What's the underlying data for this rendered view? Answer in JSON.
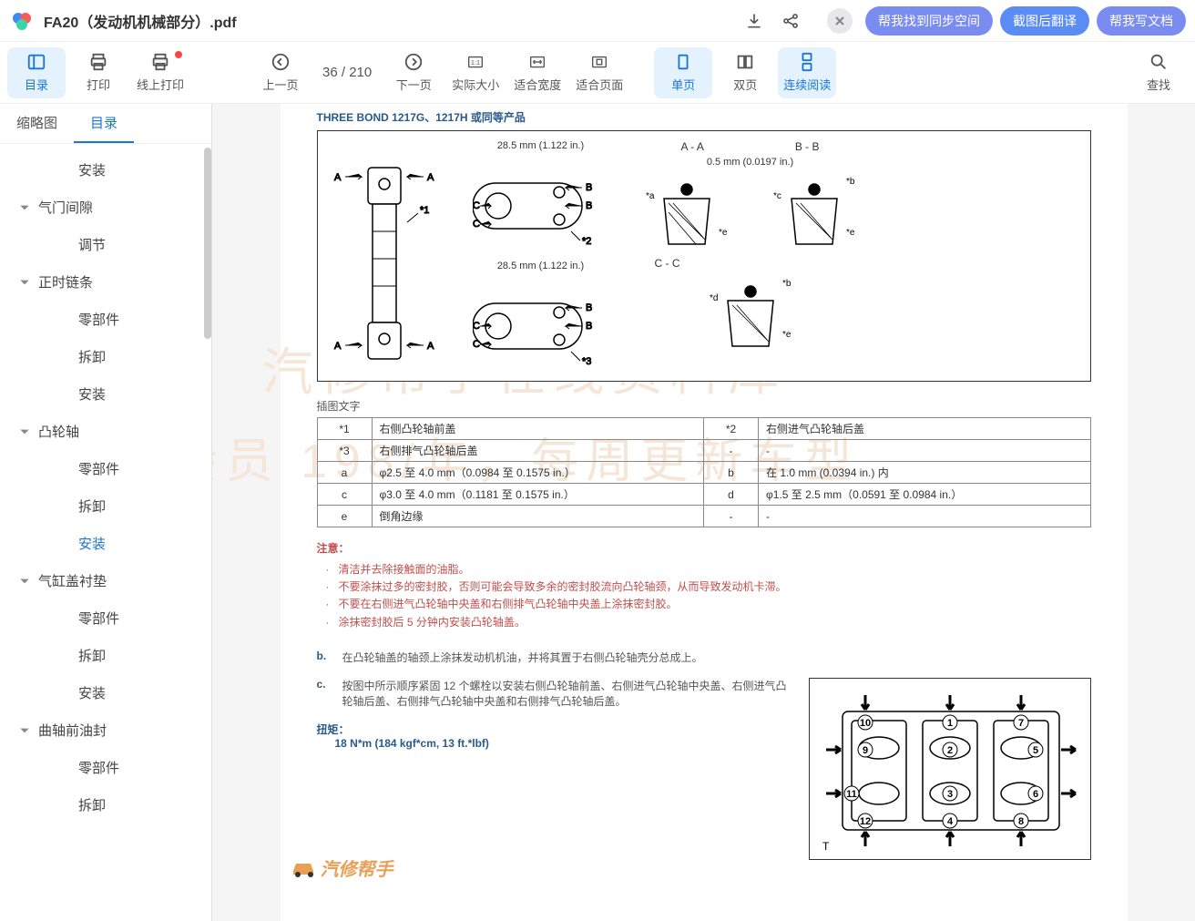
{
  "header": {
    "file_title": "FA20（发动机机械部分）.pdf",
    "pills": {
      "sync": "帮我找到同步空间",
      "translate": "截图后翻译",
      "write": "帮我写文档"
    }
  },
  "toolbar": {
    "outline": "目录",
    "print": "打印",
    "online_print": "线上打印",
    "prev": "上一页",
    "page_current": "36",
    "page_sep": "/ 210",
    "next": "下一页",
    "actual_size": "实际大小",
    "fit_width": "适合宽度",
    "fit_page": "适合页面",
    "single": "单页",
    "double": "双页",
    "continuous": "连续阅读",
    "search": "查找"
  },
  "sidebar": {
    "tab_thumbnails": "缩略图",
    "tab_outline": "目录",
    "items": [
      {
        "level": 2,
        "label": "安装"
      },
      {
        "level": 1,
        "label": "气门间隙"
      },
      {
        "level": 2,
        "label": "调节"
      },
      {
        "level": 1,
        "label": "正时链条"
      },
      {
        "level": 2,
        "label": "零部件"
      },
      {
        "level": 2,
        "label": "拆卸"
      },
      {
        "level": 2,
        "label": "安装"
      },
      {
        "level": 1,
        "label": "凸轮轴"
      },
      {
        "level": 2,
        "label": "零部件"
      },
      {
        "level": 2,
        "label": "拆卸"
      },
      {
        "level": 2,
        "label": "安装",
        "active": true
      },
      {
        "level": 1,
        "label": "气缸盖衬垫"
      },
      {
        "level": 2,
        "label": "零部件"
      },
      {
        "level": 2,
        "label": "拆卸"
      },
      {
        "level": 2,
        "label": "安装"
      },
      {
        "level": 1,
        "label": "曲轴前油封"
      },
      {
        "level": 2,
        "label": "零部件"
      },
      {
        "level": 2,
        "label": "拆卸"
      }
    ]
  },
  "doc": {
    "watermark1": "汽修帮手在线资料库",
    "watermark2": "会员 198/年，每周更新车型",
    "sealant_title": "THREE BOND 1217G、1217H 或同等产品",
    "diagram": {
      "dim1": "28.5 mm (1.122 in.)",
      "dim2": "28.5 mm (1.122 in.)",
      "sec_aa": "A - A",
      "sec_bb": "B - B",
      "sec_cc": "C - C",
      "clearance": "0.5 mm (0.0197 in.)",
      "labels": [
        "A",
        "B",
        "C",
        "*1",
        "*2",
        "*3",
        "*a",
        "*b",
        "*c",
        "*d",
        "*e"
      ]
    },
    "caption": "插图文字",
    "legend": [
      [
        "*1",
        "右侧凸轮轴前盖",
        "*2",
        "右侧进气凸轮轴后盖"
      ],
      [
        "*3",
        "右侧排气凸轮轴后盖",
        "-",
        "-"
      ],
      [
        "a",
        "φ2.5 至 4.0 mm（0.0984 至 0.1575 in.）",
        "b",
        "在 1.0 mm (0.0394 in.) 内"
      ],
      [
        "c",
        "φ3.0 至 4.0 mm（0.1181 至 0.1575 in.）",
        "d",
        "φ1.5 至 2.5 mm（0.0591 至 0.0984 in.）"
      ],
      [
        "e",
        "倒角边缘",
        "-",
        "-"
      ]
    ],
    "note_title": "注意：",
    "notes": [
      "清洁并去除接触面的油脂。",
      "不要涂抹过多的密封胶，否则可能会导致多余的密封胶流向凸轮轴颈，从而导致发动机卡滞。",
      "不要在右侧进气凸轮轴中央盖和右侧排气凸轮轴中央盖上涂抹密封胶。",
      "涂抹密封胶后 5 分钟内安装凸轮轴盖。"
    ],
    "step_b_label": "b.",
    "step_b": "在凸轮轴盖的轴颈上涂抹发动机机油，并将其置于右侧凸轮轴壳分总成上。",
    "step_c_label": "c.",
    "step_c": "按图中所示顺序紧固 12 个螺栓以安装右侧凸轮轴前盖、右侧进气凸轮轴中央盖、右侧进气凸轮轴后盖、右侧排气凸轮轴中央盖和右侧排气凸轮轴后盖。",
    "torque_label": "扭矩：",
    "torque_val": "18 N*m (184 kgf*cm, 13 ft.*lbf)",
    "bolt_diagram_T": "T",
    "brand": "汽修帮手"
  },
  "colors": {
    "accent": "#1976d2",
    "active_bg": "#e3f2fd",
    "pill_purple": "#7b8cf0",
    "pill_blue": "#5b8cf5",
    "doc_blue": "#2a5a8a",
    "doc_red": "#c0504d",
    "watermark": "#f5e6d8",
    "brand_orange": "#e8a055"
  }
}
